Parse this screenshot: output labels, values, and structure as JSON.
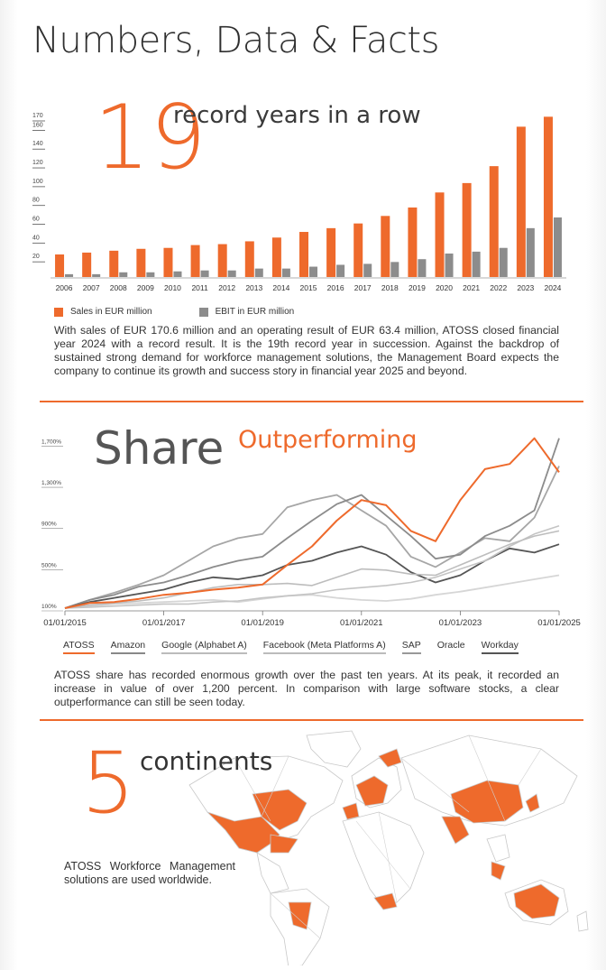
{
  "page": {
    "title": "Numbers, Data & Facts"
  },
  "section1": {
    "big_number": "19",
    "headline": "record years in a row",
    "paragraph": "With sales of EUR 170.6 million and an operating result of EUR 63.4 million, ATOSS closed financial year 2024 with a record result. It is the 19th record year in succession. Against the backdrop of sustained strong demand for workforce management solutions, the Management Board expects the company to continue its growth and success story in financial year 2025 and beyond."
  },
  "section2": {
    "headline_a": "Share",
    "headline_b": "Outperforming",
    "paragraph": "ATOSS share has recorded enormous growth over the past ten years. At its peak, it recorded an increase in value of over 1,200 percent. In comparison with large software stocks, a clear outperformance can still be seen today."
  },
  "section3": {
    "big_number": "5",
    "headline": "continents",
    "paragraph": "ATOSS Workforce Management solutions are used worldwide."
  },
  "colors": {
    "accent": "#ee6a2c",
    "ebit": "#8c8c8c"
  },
  "chart_data": [
    {
      "type": "bar",
      "categories": [
        "2006",
        "2007",
        "2008",
        "2009",
        "2010",
        "2011",
        "2012",
        "2013",
        "2014",
        "2015",
        "2016",
        "2017",
        "2018",
        "2019",
        "2020",
        "2021",
        "2022",
        "2023",
        "2024"
      ],
      "series": [
        {
          "name": "Sales in EUR million",
          "values": [
            24,
            26,
            28,
            30,
            31,
            34,
            35,
            38,
            42,
            48,
            52,
            57,
            65,
            74,
            90,
            100,
            118,
            160,
            170.6
          ]
        },
        {
          "name": "EBIT in EUR million",
          "values": [
            3,
            3,
            5,
            5,
            6,
            7,
            7,
            9,
            9,
            11,
            13,
            14,
            16,
            19,
            25,
            27,
            31,
            52,
            63.4
          ]
        }
      ],
      "yticks": [
        20,
        40,
        60,
        80,
        100,
        120,
        140,
        160,
        170
      ],
      "ytick_labels": [
        "20",
        "40",
        "60",
        "80",
        "100",
        "120",
        "140",
        "160",
        "170"
      ],
      "ylim": [
        0,
        175
      ],
      "legend": "bottom-left",
      "title": "",
      "xlabel": "",
      "ylabel": ""
    },
    {
      "type": "line",
      "xlim": [
        "2015-01-01",
        "2025-01-01"
      ],
      "x_tick_labels": [
        "01/01/2015",
        "01/01/2017",
        "01/01/2019",
        "01/01/2021",
        "01/01/2023",
        "01/01/2025"
      ],
      "y_tick_labels": [
        "100%",
        "500%",
        "900%",
        "1,300%",
        "1,700%"
      ],
      "yticks": [
        100,
        500,
        900,
        1300,
        1700
      ],
      "ylim": [
        100,
        1800
      ],
      "x": [
        2015,
        2015.5,
        2016,
        2016.5,
        2017,
        2017.5,
        2018,
        2018.5,
        2019,
        2019.5,
        2020,
        2020.5,
        2021,
        2021.5,
        2022,
        2022.5,
        2023,
        2023.5,
        2024,
        2024.5,
        2025
      ],
      "series": [
        {
          "name": "ATOSS",
          "values": [
            100,
            150,
            160,
            190,
            230,
            250,
            280,
            300,
            330,
            520,
            700,
            950,
            1150,
            1100,
            850,
            750,
            1150,
            1450,
            1500,
            1750,
            1420
          ]
        },
        {
          "name": "Amazon",
          "values": [
            100,
            180,
            250,
            330,
            420,
            560,
            700,
            780,
            820,
            1080,
            1150,
            1200,
            1050,
            900,
            600,
            500,
            640,
            780,
            750,
            980,
            1480
          ]
        },
        {
          "name": "Google (Alphabet A)",
          "values": [
            100,
            180,
            230,
            310,
            350,
            420,
            500,
            560,
            600,
            780,
            950,
            1110,
            1200,
            1000,
            800,
            580,
            620,
            800,
            900,
            1050,
            1750
          ]
        },
        {
          "name": "Facebook (Meta Platforms A)",
          "values": [
            100,
            160,
            200,
            240,
            280,
            350,
            400,
            380,
            420,
            520,
            560,
            640,
            700,
            620,
            450,
            350,
            420,
            560,
            680,
            640,
            720
          ]
        },
        {
          "name": "SAP",
          "values": [
            100,
            120,
            140,
            150,
            160,
            170,
            180,
            160,
            190,
            220,
            230,
            200,
            180,
            170,
            190,
            230,
            260,
            300,
            340,
            380,
            420
          ]
        },
        {
          "name": "Oracle",
          "values": [
            100,
            110,
            120,
            130,
            140,
            140,
            160,
            170,
            200,
            220,
            240,
            280,
            300,
            320,
            350,
            400,
            480,
            560,
            700,
            820,
            900
          ]
        },
        {
          "name": "Workday",
          "values": [
            100,
            130,
            150,
            170,
            200,
            250,
            300,
            330,
            330,
            340,
            320,
            400,
            480,
            470,
            430,
            420,
            520,
            620,
            720,
            800,
            850
          ]
        }
      ],
      "legend": "bottom",
      "title": ""
    }
  ]
}
